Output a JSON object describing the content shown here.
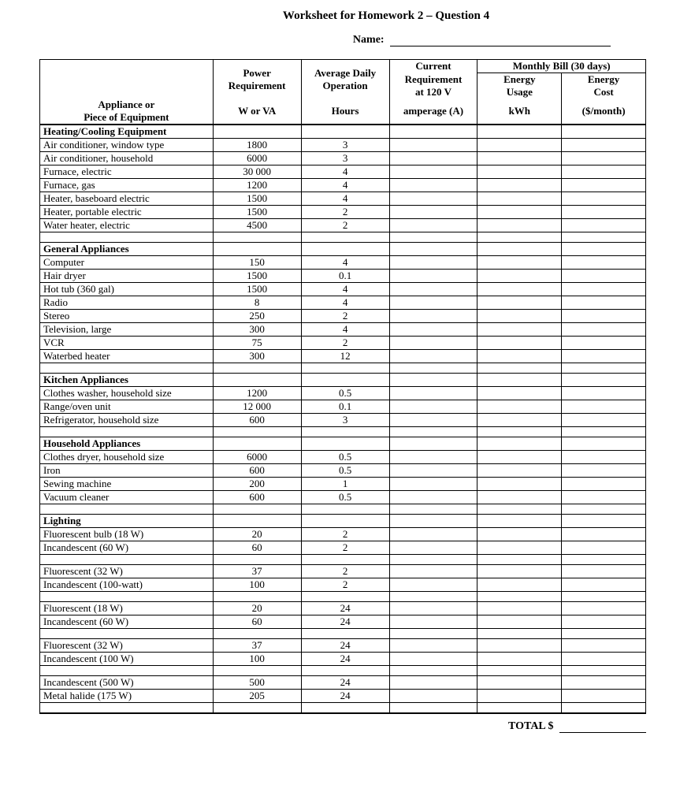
{
  "doc": {
    "title": "Worksheet for Homework 2 – Question 4",
    "name_label": "Name:",
    "total_label": "TOTAL $"
  },
  "header": {
    "col0_line1": "Appliance or",
    "col0_line2": "Piece of Equipment",
    "col1_line1": "Power",
    "col1_line2": "Requirement",
    "col1_line3": "W or VA",
    "col2_line1": "Average Daily",
    "col2_line2": "Operation",
    "col2_line3": "Hours",
    "col3_line1": "Current",
    "col3_line2": "Requirement",
    "col3_line3": "at 120 V",
    "col3_line4": "amperage (A)",
    "col45_group": "Monthly Bill (30 days)",
    "col4_line1": "Energy",
    "col4_line2": "Usage",
    "col4_line3": "kWh",
    "col5_line1": "Energy",
    "col5_line2": "Cost",
    "col5_line3": "($/month)"
  },
  "sections": [
    {
      "label": "Heating/Cooling Equipment",
      "rows": [
        {
          "name": "Air conditioner, window type",
          "power": "1800",
          "hours": "3"
        },
        {
          "name": "Air conditioner, household",
          "power": "6000",
          "hours": "3"
        },
        {
          "name": "Furnace, electric",
          "power": "30 000",
          "hours": "4"
        },
        {
          "name": "Furnace, gas",
          "power": "1200",
          "hours": "4"
        },
        {
          "name": "Heater, baseboard electric",
          "power": "1500",
          "hours": "4"
        },
        {
          "name": "Heater, portable electric",
          "power": "1500",
          "hours": "2"
        },
        {
          "name": "Water heater, electric",
          "power": "4500",
          "hours": "2"
        }
      ]
    },
    {
      "label": "General Appliances",
      "rows": [
        {
          "name": "Computer",
          "power": "150",
          "hours": "4"
        },
        {
          "name": "Hair dryer",
          "power": "1500",
          "hours": "0.1"
        },
        {
          "name": "Hot tub (360 gal)",
          "power": "1500",
          "hours": "4"
        },
        {
          "name": "Radio",
          "power": "8",
          "hours": "4"
        },
        {
          "name": "Stereo",
          "power": "250",
          "hours": "2"
        },
        {
          "name": "Television, large",
          "power": "300",
          "hours": "4"
        },
        {
          "name": "VCR",
          "power": "75",
          "hours": "2"
        },
        {
          "name": "Waterbed heater",
          "power": "300",
          "hours": "12"
        }
      ]
    },
    {
      "label": "Kitchen Appliances",
      "rows": [
        {
          "name": "Clothes washer, household size",
          "power": "1200",
          "hours": "0.5"
        },
        {
          "name": "Range/oven unit",
          "power": "12 000",
          "hours": "0.1"
        },
        {
          "name": "Refrigerator, household size",
          "power": "600",
          "hours": "3"
        }
      ]
    },
    {
      "label": "Household Appliances",
      "rows": [
        {
          "name": "Clothes dryer, household size",
          "power": "6000",
          "hours": "0.5"
        },
        {
          "name": "Iron",
          "power": "600",
          "hours": "0.5"
        },
        {
          "name": "Sewing machine",
          "power": "200",
          "hours": "1"
        },
        {
          "name": "Vacuum cleaner",
          "power": "600",
          "hours": "0.5"
        }
      ]
    },
    {
      "label": "Lighting",
      "groups": [
        [
          {
            "name": "Fluorescent bulb (18 W)",
            "power": "20",
            "hours": "2"
          },
          {
            "name": "Incandescent (60 W)",
            "power": "60",
            "hours": "2"
          }
        ],
        [
          {
            "name": "Fluorescent (32 W)",
            "power": "37",
            "hours": "2"
          },
          {
            "name": "Incandescent (100-watt)",
            "power": "100",
            "hours": "2"
          }
        ],
        [
          {
            "name": "Fluorescent (18 W)",
            "power": "20",
            "hours": "24"
          },
          {
            "name": "Incandescent (60 W)",
            "power": "60",
            "hours": "24"
          }
        ],
        [
          {
            "name": "Fluorescent (32 W)",
            "power": "37",
            "hours": "24"
          },
          {
            "name": "Incandescent (100 W)",
            "power": "100",
            "hours": "24"
          }
        ],
        [
          {
            "name": "Incandescent (500 W)",
            "power": "500",
            "hours": "24"
          },
          {
            "name": "Metal halide (175 W)",
            "power": "205",
            "hours": "24"
          }
        ]
      ]
    }
  ]
}
